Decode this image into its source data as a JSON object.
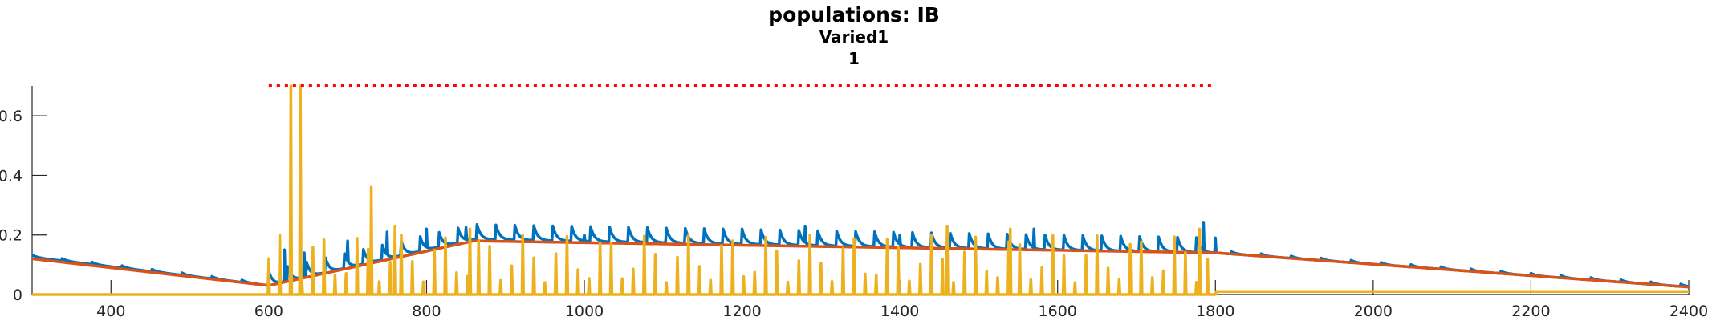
{
  "figure": {
    "title": "populations: IB",
    "subtitle": "Varied1",
    "subtitle2": "1"
  },
  "chart_data": {
    "type": "line",
    "title": "populations: IB",
    "subtitle": [
      "Varied1",
      "1"
    ],
    "xlabel": "",
    "ylabel": "",
    "xlim": [
      300,
      2400
    ],
    "ylim": [
      0,
      0.7
    ],
    "x_ticks": [
      400,
      600,
      800,
      1000,
      1200,
      1400,
      1600,
      1800,
      2000,
      2200,
      2400
    ],
    "y_ticks": [
      0,
      0.2,
      0.4,
      0.6
    ],
    "y_tick_labels": [
      "0",
      "0.2",
      "0.4",
      "0.6"
    ],
    "grid": false,
    "legend": "none",
    "colors": {
      "series1": "#0072BD",
      "series2": "#D95319",
      "series3": "#EDB120",
      "stimulus": "#FF0000"
    },
    "stimulus_marker": {
      "x": [
        600,
        1800
      ],
      "y": 0.7,
      "style": "dotted"
    },
    "series": [
      {
        "id": "series1",
        "description": "bursting trace with decaying peaks",
        "baseline": {
          "x": [
            300,
            600,
            860,
            1800,
            2400
          ],
          "y": [
            0.125,
            0.03,
            0.185,
            0.14,
            0.025
          ]
        },
        "peaks": [
          {
            "x": 620,
            "y": 0.15
          },
          {
            "x": 645,
            "y": 0.14
          },
          {
            "x": 700,
            "y": 0.18
          },
          {
            "x": 750,
            "y": 0.21
          },
          {
            "x": 800,
            "y": 0.22
          },
          {
            "x": 850,
            "y": 0.225
          },
          {
            "x": 1000,
            "y": 0.2
          },
          {
            "x": 1200,
            "y": 0.22
          },
          {
            "x": 1280,
            "y": 0.23
          },
          {
            "x": 1400,
            "y": 0.2
          },
          {
            "x": 1570,
            "y": 0.22
          },
          {
            "x": 1785,
            "y": 0.24
          }
        ]
      },
      {
        "id": "series2",
        "description": "slow envelope trace",
        "points": {
          "x": [
            300,
            600,
            860,
            1800,
            2400
          ],
          "y": [
            0.12,
            0.03,
            0.18,
            0.14,
            0.025
          ]
        }
      },
      {
        "id": "series3",
        "description": "fast spiking trace",
        "baseline": 0.0,
        "spikes": [
          {
            "x": 628,
            "y": 0.7
          },
          {
            "x": 640,
            "y": 0.7
          },
          {
            "x": 730,
            "y": 0.36
          },
          {
            "x": 760,
            "y": 0.23
          },
          {
            "x": 855,
            "y": 0.22
          },
          {
            "x": 1460,
            "y": 0.23
          },
          {
            "x": 1540,
            "y": 0.22
          },
          {
            "x": 1780,
            "y": 0.22
          }
        ],
        "spike_range": {
          "x": [
            600,
            1800
          ],
          "typical_y": [
            0.04,
            0.2
          ]
        },
        "post_stimulus_level": 0.01
      }
    ]
  }
}
